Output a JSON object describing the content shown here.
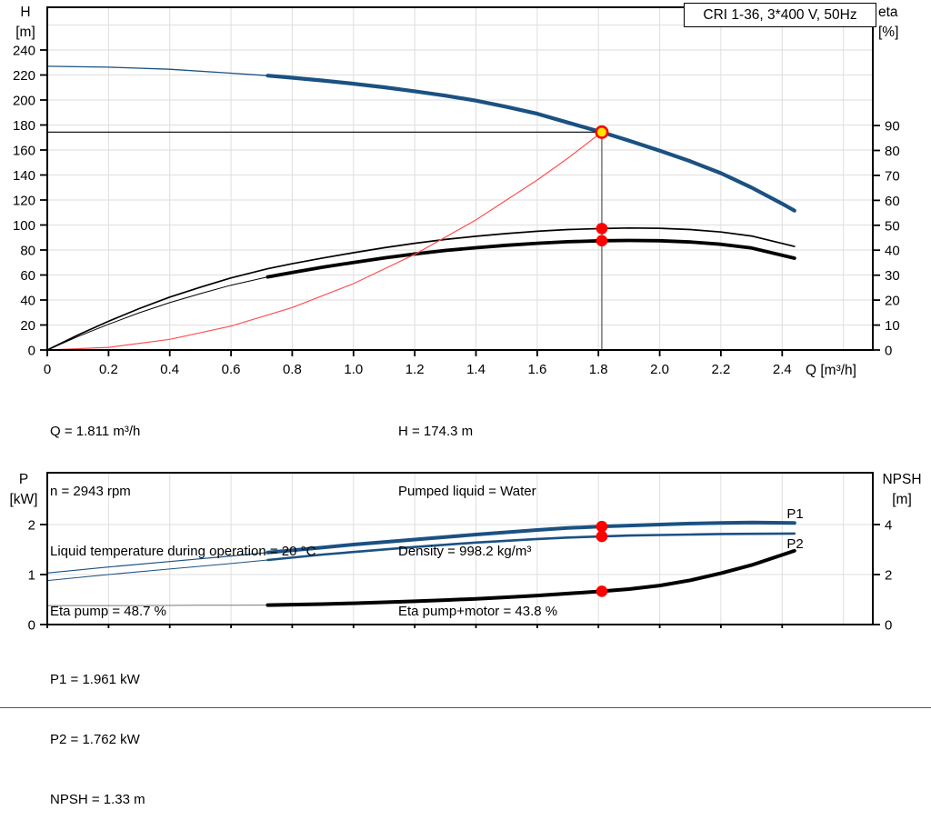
{
  "title": "CRI 1-36, 3*400 V, 50Hz",
  "axis_units": {
    "top_left_line1": "H",
    "top_left_line2": "[m]",
    "top_right_line1": "eta",
    "top_right_line2": "[%]",
    "x_label": "Q [m³/h]",
    "bottom_left_line1": "P",
    "bottom_left_line2": "[kW]",
    "bottom_right_line1": "NPSH",
    "bottom_right_line2": "[m]"
  },
  "info_left": [
    "Q = 1.811 m³/h",
    "n = 2943 rpm",
    "Liquid temperature during operation = 20 °C",
    "Eta pump = 48.7 %"
  ],
  "info_right": [
    "H = 174.3 m",
    "Pumped liquid = Water",
    "Density = 998.2 kg/m³",
    "Eta pump+motor = 43.8 %"
  ],
  "info_bottom": [
    "P1 = 1.961 kW",
    "P2 = 1.762 kW",
    "NPSH = 1.33 m"
  ],
  "colors": {
    "curve_blue": "#1b5182",
    "curve_black": "#000000",
    "system_red": "#ff5050",
    "dot_red": "#ff0000",
    "op_yellow": "#ffe600",
    "grid": "#dedede"
  },
  "operating_point": {
    "Q": 1.811,
    "H": 174.3,
    "eta_pump": 48.7,
    "eta_pump_motor": 43.8,
    "P1": 1.961,
    "P2": 1.762,
    "NPSH": 1.33
  },
  "chart_data": [
    {
      "type": "line",
      "name": "head-efficiency-chart",
      "title": "CRI 1-36, 3*400 V, 50Hz",
      "grid_color": "#dedede",
      "x_axis": {
        "label": "Q [m³/h]",
        "min": 0,
        "max": 2.696,
        "ticks": [
          0,
          0.2,
          0.4,
          0.6,
          0.8,
          1.0,
          1.2,
          1.4,
          1.6,
          1.8,
          2.0,
          2.2,
          2.4
        ],
        "grid": [
          0.2,
          0.4,
          0.6,
          0.8,
          1.0,
          1.2,
          1.4,
          1.6,
          1.8,
          2.0,
          2.2,
          2.4,
          2.6
        ]
      },
      "y_left": {
        "label": "H [m]",
        "min": 0,
        "max": 274.2,
        "ticks": [
          0,
          20,
          40,
          60,
          80,
          100,
          120,
          140,
          160,
          180,
          200,
          220,
          240
        ],
        "grid": [
          20,
          40,
          60,
          80,
          100,
          120,
          140,
          160,
          180,
          200,
          220,
          240,
          260
        ]
      },
      "y_right": {
        "label": "eta [%]",
        "min": 0,
        "max": 137.4,
        "ticks": [
          0,
          10,
          20,
          30,
          40,
          50,
          60,
          70,
          80,
          90
        ],
        "grid": []
      },
      "series": [
        {
          "name": "HQ-curve-extrapolated",
          "axis": "left",
          "color": "#1b5182",
          "width": 1.3,
          "points": [
            [
              0,
              227
            ],
            [
              0.2,
              226.3
            ],
            [
              0.4,
              224.6
            ],
            [
              0.6,
              221.5
            ],
            [
              0.72,
              219.5
            ]
          ]
        },
        {
          "name": "HQ-curve",
          "axis": "left",
          "color": "#1b5182",
          "width": 4.2,
          "points": [
            [
              0.72,
              219.5
            ],
            [
              0.8,
              217.8
            ],
            [
              0.9,
              215.6
            ],
            [
              1.0,
              213
            ],
            [
              1.1,
              210.2
            ],
            [
              1.2,
              207
            ],
            [
              1.3,
              203.5
            ],
            [
              1.4,
              199.5
            ],
            [
              1.5,
              194.5
            ],
            [
              1.6,
              189
            ],
            [
              1.7,
              182
            ],
            [
              1.811,
              174.3
            ],
            [
              1.9,
              167.5
            ],
            [
              2.0,
              159.5
            ],
            [
              2.1,
              151
            ],
            [
              2.2,
              141.5
            ],
            [
              2.3,
              130
            ],
            [
              2.4,
              117
            ],
            [
              2.44,
              111.5
            ]
          ]
        },
        {
          "name": "eta-pump-curve",
          "axis": "right",
          "color": "#000000",
          "width": 1.7,
          "points": [
            [
              0,
              0
            ],
            [
              0.1,
              6
            ],
            [
              0.2,
              11.5
            ],
            [
              0.3,
              16.6
            ],
            [
              0.4,
              21.2
            ],
            [
              0.5,
              25.2
            ],
            [
              0.6,
              28.9
            ],
            [
              0.72,
              32.6
            ],
            [
              0.8,
              34.6
            ],
            [
              0.9,
              36.9
            ],
            [
              1.0,
              39
            ],
            [
              1.1,
              41
            ],
            [
              1.2,
              42.8
            ],
            [
              1.3,
              44.3
            ],
            [
              1.4,
              45.6
            ],
            [
              1.5,
              46.7
            ],
            [
              1.6,
              47.6
            ],
            [
              1.7,
              48.3
            ],
            [
              1.811,
              48.7
            ],
            [
              1.9,
              48.9
            ],
            [
              2.0,
              48.8
            ],
            [
              2.1,
              48.3
            ],
            [
              2.2,
              47.3
            ],
            [
              2.3,
              45.7
            ],
            [
              2.44,
              41.5
            ]
          ]
        },
        {
          "name": "eta-pump-motor-extrapolated",
          "axis": "right",
          "color": "#000000",
          "width": 1.0,
          "points": [
            [
              0,
              0
            ],
            [
              0.1,
              5.4
            ],
            [
              0.2,
              10.3
            ],
            [
              0.3,
              14.9
            ],
            [
              0.4,
              19
            ],
            [
              0.5,
              22.6
            ],
            [
              0.6,
              26
            ],
            [
              0.72,
              29.3
            ]
          ]
        },
        {
          "name": "eta-pump-motor-curve",
          "axis": "right",
          "color": "#000000",
          "width": 3.8,
          "points": [
            [
              0.72,
              29.3
            ],
            [
              0.8,
              31.1
            ],
            [
              0.9,
              33.2
            ],
            [
              1.0,
              35.1
            ],
            [
              1.1,
              36.9
            ],
            [
              1.2,
              38.5
            ],
            [
              1.3,
              39.9
            ],
            [
              1.4,
              41
            ],
            [
              1.5,
              42
            ],
            [
              1.6,
              42.8
            ],
            [
              1.7,
              43.4
            ],
            [
              1.811,
              43.8
            ],
            [
              1.9,
              43.9
            ],
            [
              2.0,
              43.8
            ],
            [
              2.1,
              43.3
            ],
            [
              2.2,
              42.4
            ],
            [
              2.3,
              40.9
            ],
            [
              2.44,
              36.8
            ]
          ]
        },
        {
          "name": "system-curve",
          "axis": "left",
          "color": "#ff5050",
          "width": 1.2,
          "points": [
            [
              0,
              0
            ],
            [
              0.2,
              2.1
            ],
            [
              0.4,
              8.5
            ],
            [
              0.6,
              19.1
            ],
            [
              0.8,
              34
            ],
            [
              1.0,
              53.1
            ],
            [
              1.2,
              76.5
            ],
            [
              1.4,
              104.1
            ],
            [
              1.6,
              136
            ],
            [
              1.7,
              153.5
            ],
            [
              1.811,
              174.3
            ]
          ]
        }
      ],
      "crosshair": {
        "q": 1.811,
        "v": 174.3
      },
      "markers": [
        {
          "type": "op",
          "axis": "left",
          "q": 1.811,
          "v": 174.3
        },
        {
          "type": "dot",
          "axis": "right",
          "q": 1.811,
          "v": 48.7
        },
        {
          "type": "dot",
          "axis": "right",
          "q": 1.811,
          "v": 43.8
        }
      ],
      "series_labels": []
    },
    {
      "type": "line",
      "name": "power-npsh-chart",
      "grid_color": "#dedede",
      "x_axis": {
        "label": "Q [m³/h]",
        "min": 0,
        "max": 2.696,
        "ticks": [
          0,
          0.2,
          0.4,
          0.6,
          0.8,
          1.0,
          1.2,
          1.4,
          1.6,
          1.8,
          2.0,
          2.2,
          2.4
        ],
        "grid": [
          0.2,
          0.4,
          0.6,
          0.8,
          1.0,
          1.2,
          1.4,
          1.6,
          1.8,
          2.0,
          2.2,
          2.4,
          2.6
        ]
      },
      "y_left": {
        "label": "P [kW]",
        "min": 0,
        "max": 3.036,
        "ticks": [
          0,
          1,
          2
        ],
        "grid": [
          1,
          2
        ]
      },
      "y_right": {
        "label": "NPSH [m]",
        "min": 0,
        "max": 6.073,
        "ticks": [
          0,
          2,
          4
        ],
        "grid": []
      },
      "series": [
        {
          "name": "P1-curve-extrapolated",
          "axis": "left",
          "color": "#1b5182",
          "width": 1.2,
          "points": [
            [
              0,
              1.03
            ],
            [
              0.2,
              1.15
            ],
            [
              0.4,
              1.26
            ],
            [
              0.6,
              1.37
            ],
            [
              0.72,
              1.44
            ]
          ]
        },
        {
          "name": "P1-curve",
          "axis": "left",
          "color": "#1b5182",
          "width": 4.0,
          "points": [
            [
              0.72,
              1.44
            ],
            [
              0.9,
              1.54
            ],
            [
              1.0,
              1.6
            ],
            [
              1.2,
              1.7
            ],
            [
              1.4,
              1.8
            ],
            [
              1.6,
              1.89
            ],
            [
              1.7,
              1.93
            ],
            [
              1.811,
              1.961
            ],
            [
              1.9,
              1.98
            ],
            [
              2.0,
              2.0
            ],
            [
              2.1,
              2.02
            ],
            [
              2.2,
              2.03
            ],
            [
              2.3,
              2.04
            ],
            [
              2.44,
              2.03
            ]
          ]
        },
        {
          "name": "P2-curve-extrapolated",
          "axis": "left",
          "color": "#1b5182",
          "width": 1.0,
          "points": [
            [
              0,
              0.88
            ],
            [
              0.2,
              1.0
            ],
            [
              0.4,
              1.11
            ],
            [
              0.6,
              1.22
            ],
            [
              0.72,
              1.29
            ]
          ]
        },
        {
          "name": "P2-curve",
          "axis": "left",
          "color": "#1b5182",
          "width": 2.6,
          "points": [
            [
              0.72,
              1.29
            ],
            [
              0.9,
              1.4
            ],
            [
              1.0,
              1.45
            ],
            [
              1.2,
              1.55
            ],
            [
              1.4,
              1.64
            ],
            [
              1.6,
              1.71
            ],
            [
              1.7,
              1.74
            ],
            [
              1.811,
              1.762
            ],
            [
              1.9,
              1.78
            ],
            [
              2.0,
              1.79
            ],
            [
              2.1,
              1.8
            ],
            [
              2.2,
              1.81
            ],
            [
              2.3,
              1.815
            ],
            [
              2.44,
              1.82
            ]
          ]
        },
        {
          "name": "NPSH-curve-extrapolated",
          "axis": "right",
          "color": "#777777",
          "width": 1.0,
          "points": [
            [
              0,
              0.76
            ],
            [
              0.3,
              0.76
            ],
            [
              0.5,
              0.77
            ],
            [
              0.72,
              0.78
            ]
          ]
        },
        {
          "name": "NPSH-curve",
          "axis": "right",
          "color": "#000000",
          "width": 4.0,
          "points": [
            [
              0.72,
              0.78
            ],
            [
              0.9,
              0.82
            ],
            [
              1.0,
              0.85
            ],
            [
              1.1,
              0.89
            ],
            [
              1.2,
              0.93
            ],
            [
              1.3,
              0.98
            ],
            [
              1.4,
              1.03
            ],
            [
              1.5,
              1.09
            ],
            [
              1.6,
              1.16
            ],
            [
              1.7,
              1.24
            ],
            [
              1.811,
              1.33
            ],
            [
              1.9,
              1.42
            ],
            [
              2.0,
              1.56
            ],
            [
              2.1,
              1.77
            ],
            [
              2.2,
              2.05
            ],
            [
              2.3,
              2.38
            ],
            [
              2.44,
              2.95
            ]
          ]
        }
      ],
      "markers": [
        {
          "type": "dot",
          "axis": "left",
          "q": 1.811,
          "v": 1.961
        },
        {
          "type": "dot",
          "axis": "left",
          "q": 1.811,
          "v": 1.762
        },
        {
          "type": "dot",
          "axis": "right",
          "q": 1.811,
          "v": 1.33
        }
      ],
      "series_labels": [
        {
          "text": "P1",
          "q": 2.415,
          "v": 2.13
        },
        {
          "text": "P2",
          "q": 2.415,
          "v": 1.53
        }
      ]
    }
  ]
}
